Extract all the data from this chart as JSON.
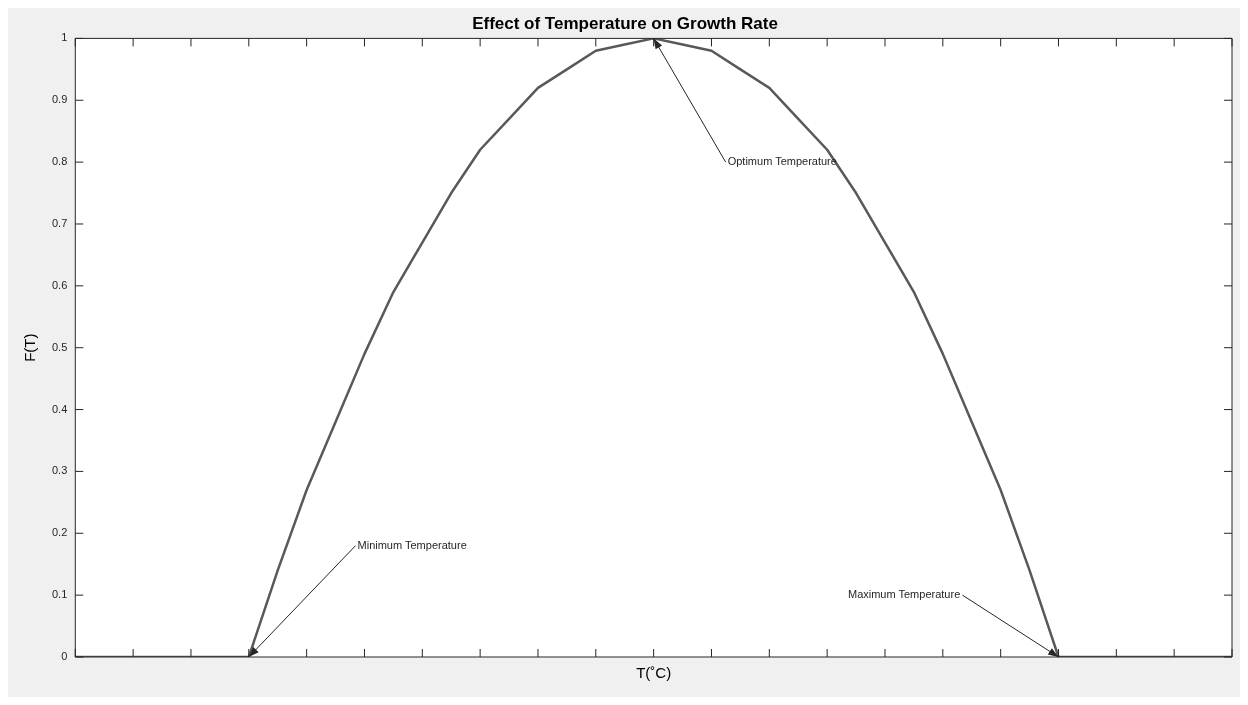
{
  "chart_data": {
    "type": "line",
    "title": "Effect of Temperature on Growth Rate",
    "xlabel": "T(˚C)",
    "ylabel": "F(T)",
    "categories": [
      null,
      null,
      null,
      null,
      null,
      null,
      null,
      null,
      null,
      null,
      null,
      null,
      null,
      null,
      null,
      null,
      null,
      null,
      null,
      null,
      null,
      null,
      null,
      null,
      null,
      null,
      null,
      null,
      null,
      null,
      null,
      null,
      null,
      null,
      null,
      null,
      null,
      null,
      null,
      null,
      null
    ],
    "series": [
      {
        "color": "#595959",
        "values": [
          0,
          0,
          0,
          0,
          0,
          0,
          0,
          0.14,
          0.27,
          0.38,
          0.49,
          0.59,
          0.67,
          0.75,
          0.82,
          0.87,
          0.92,
          0.95,
          0.98,
          0.99,
          1,
          0.99,
          0.98,
          0.95,
          0.92,
          0.87,
          0.82,
          0.75,
          0.67,
          0.59,
          0.49,
          0.38,
          0.27,
          0.14,
          0,
          0,
          0,
          0,
          0,
          0,
          0
        ]
      }
    ],
    "ylim": [
      0,
      1
    ],
    "yticks": [
      0,
      0.1,
      0.2,
      0.3,
      0.4,
      0.5,
      0.6,
      0.7,
      0.8,
      0.9,
      1
    ],
    "annotations": [
      "Minimum Temperature",
      "Optimum Temperature",
      "Maximum Temperature"
    ],
    "grid": false,
    "legend": false,
    "marker": "none",
    "line_style": "solid",
    "tick_labels": "y"
  }
}
